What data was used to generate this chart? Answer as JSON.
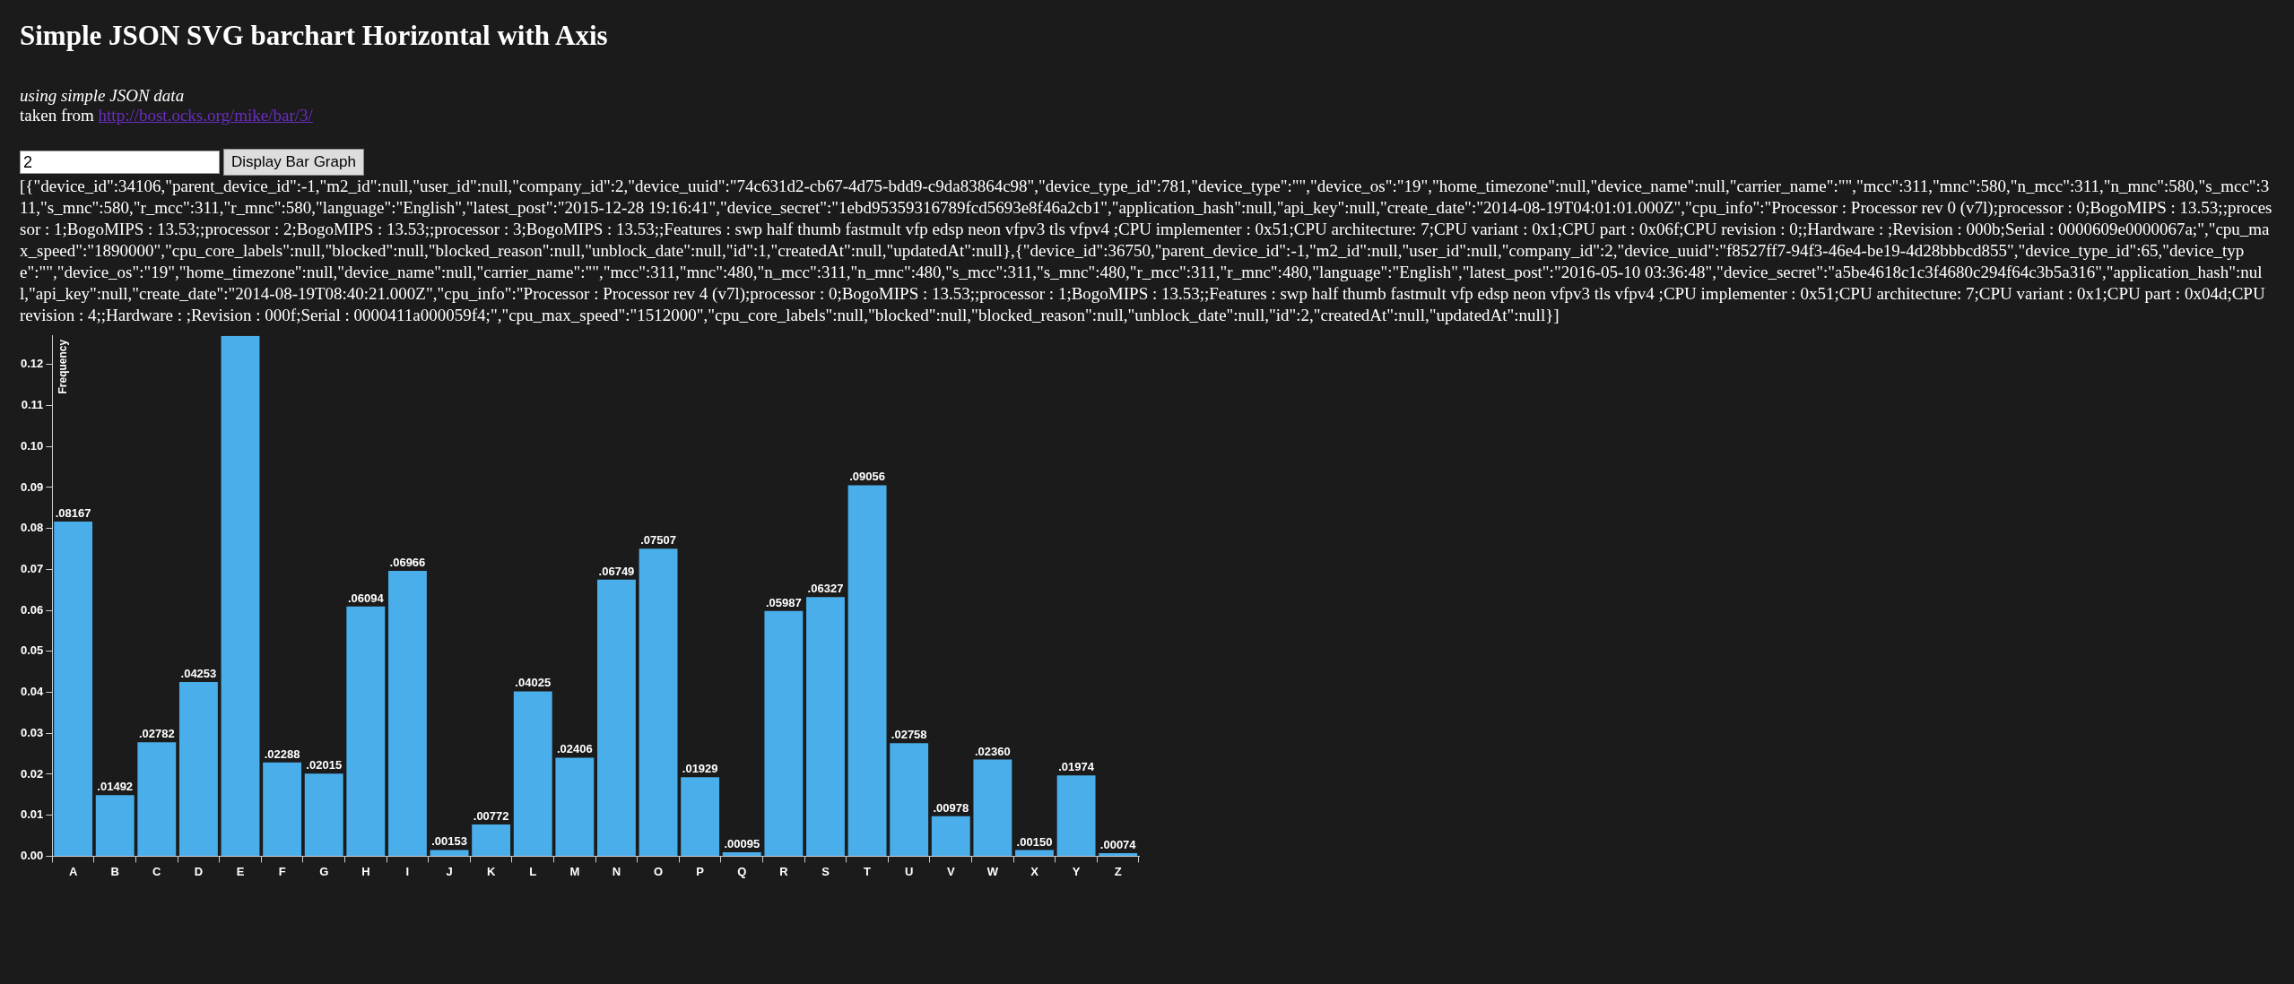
{
  "chart_data": {
    "type": "bar",
    "title": "Simple JSON SVG barchart Horizontal with Axis",
    "subtitle": "using simple JSON data",
    "ylabel": "Frequency",
    "annotations": [
      "taken from",
      "http://bost.ocks.org/mike/bar/3/",
      "2",
      "Display Bar Graph",
      "[{\"device_id\":34106,\"parent_device_id\":-1,\"m2_id\":null,\"user_id\":null,\"company_id\":2,\"device_uuid\":\"74c631d2-cb67-4d75-bdd9-c9da83864c98\",\"device_type_id\":781,\"device_type\":\"\",\"device_os\":\"19\",\"home_timezone\":null,\"device_name\":null,\"carrier_name\":\"\",\"mcc\":311,\"mnc\":580,\"n_mcc\":311,\"n_mnc\":580,\"s_mcc\":311,\"s_mnc\":580,\"r_mcc\":311,\"r_mnc\":580,\"language\":\"English\",\"latest_post\":\"2015-12-28 19:16:41\",\"device_secret\":\"1ebd95359316789fcd5693e8f46a2cb1\",\"application_hash\":null,\"api_key\":null,\"create_date\":\"2014-08-19T04:01:01.000Z\",\"cpu_info\":\"Processor : Processor rev 0 (v7l);processor : 0;BogoMIPS : 13.53;;processor : 1;BogoMIPS : 13.53;;processor : 2;BogoMIPS : 13.53;;processor : 3;BogoMIPS : 13.53;;Features : swp half thumb fastmult vfp edsp neon vfpv3 tls vfpv4 ;CPU implementer : 0x51;CPU architecture: 7;CPU variant : 0x1;CPU part : 0x06f;CPU revision : 0;;Hardware : ;Revision : 000b;Serial : 0000609e0000067a;\",\"cpu_max_speed\":\"1890000\",\"cpu_core_labels\":null,\"blocked\":null,\"blocked_reason\":null,\"unblock_date\":null,\"id\":1,\"createdAt\":null,\"updatedAt\":null},{\"device_id\":36750,\"parent_device_id\":-1,\"m2_id\":null,\"user_id\":null,\"company_id\":2,\"device_uuid\":\"f8527ff7-94f3-46e4-be19-4d28bbbcd855\",\"device_type_id\":65,\"device_type\":\"\",\"device_os\":\"19\",\"home_timezone\":null,\"device_name\":null,\"carrier_name\":\"\",\"mcc\":311,\"mnc\":480,\"n_mcc\":311,\"n_mnc\":480,\"s_mcc\":311,\"s_mnc\":480,\"r_mcc\":311,\"r_mnc\":480,\"language\":\"English\",\"latest_post\":\"2016-05-10 03:36:48\",\"device_secret\":\"a5be4618c1c3f4680c294f64c3b5a316\",\"application_hash\":null,\"api_key\":null,\"create_date\":\"2014-08-19T08:40:21.000Z\",\"cpu_info\":\"Processor : Processor rev 4 (v7l);processor : 0;BogoMIPS : 13.53;;processor : 1;BogoMIPS : 13.53;;Features : swp half thumb fastmult vfp edsp neon vfpv3 tls vfpv4 ;CPU implementer : 0x51;CPU architecture: 7;CPU variant : 0x1;CPU part : 0x04d;CPU revision : 4;;Hardware : ;Revision : 000f;Serial : 0000411a000059f4;\",\"cpu_max_speed\":\"1512000\",\"cpu_core_labels\":null,\"blocked\":null,\"blocked_reason\":null,\"unblock_date\":null,\"id\":2,\"createdAt\":null,\"updatedAt\":null}]"
    ],
    "categories": [
      "A",
      "B",
      "C",
      "D",
      "E",
      "F",
      "G",
      "H",
      "I",
      "J",
      "K",
      "L",
      "M",
      "N",
      "O",
      "P",
      "Q",
      "R",
      "S",
      "T",
      "U",
      "V",
      "W",
      "X",
      "Y",
      "Z"
    ],
    "values": [
      0.08167,
      0.01492,
      0.02782,
      0.04253,
      0.127,
      0.02288,
      0.02015,
      0.06094,
      0.06966,
      0.00153,
      0.00772,
      0.04025,
      0.02406,
      0.06749,
      0.07507,
      0.01929,
      0.00095,
      0.05987,
      0.06327,
      0.09056,
      0.02758,
      0.00978,
      0.0236,
      0.0015,
      0.01974,
      0.00074
    ],
    "value_labels": [
      ".08167",
      ".01492",
      ".02782",
      ".04253",
      null,
      ".02288",
      ".02015",
      ".06094",
      ".06966",
      ".00153",
      ".00772",
      ".04025",
      ".02406",
      ".06749",
      ".07507",
      ".01929",
      ".00095",
      ".05987",
      ".06327",
      ".09056",
      ".02758",
      ".00978",
      ".02360",
      ".00150",
      ".01974",
      ".00074"
    ],
    "color": "#4aaeea",
    "ylim": [
      0,
      0.127
    ],
    "yticks": [
      {
        "value": 0,
        "label": "0.00"
      },
      {
        "value": 0.01,
        "label": "0.01"
      },
      {
        "value": 0.02,
        "label": "0.02"
      },
      {
        "value": 0.03,
        "label": "0.03"
      },
      {
        "value": 0.04,
        "label": "0.04"
      },
      {
        "value": 0.05,
        "label": "0.05"
      },
      {
        "value": 0.06,
        "label": "0.06"
      },
      {
        "value": 0.07,
        "label": "0.07"
      },
      {
        "value": 0.08,
        "label": "0.08"
      },
      {
        "value": 0.09,
        "label": "0.09"
      },
      {
        "value": 0.1,
        "label": "0.10"
      },
      {
        "value": 0.11,
        "label": "0.11"
      },
      {
        "value": 0.12,
        "label": "0.12"
      }
    ],
    "legend": false
  }
}
